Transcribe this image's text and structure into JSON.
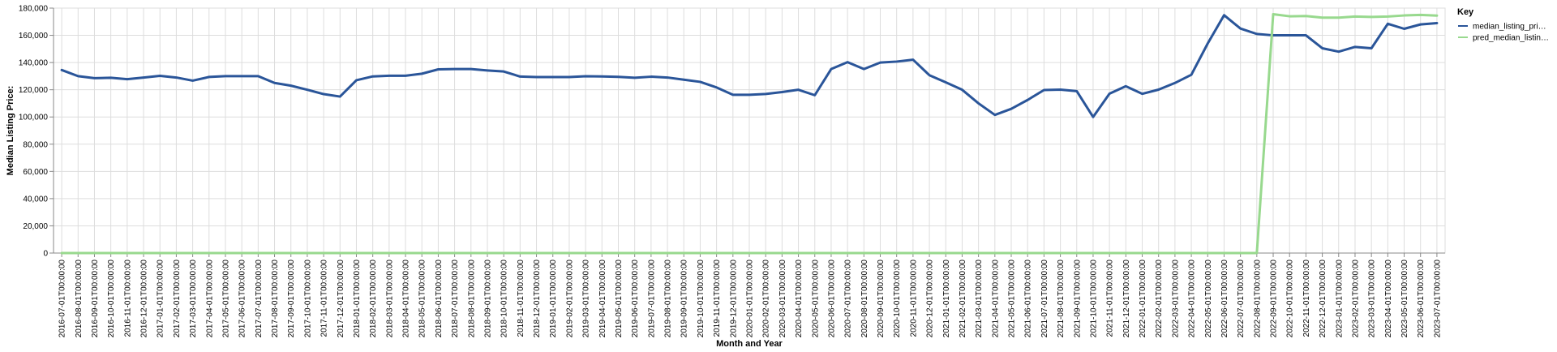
{
  "chart_data": {
    "type": "line",
    "title": "",
    "xlabel": "Month and Year",
    "ylabel": "Median Listing Price:",
    "ylim": [
      0,
      180000
    ],
    "yticks": [
      0,
      20000,
      40000,
      60000,
      80000,
      100000,
      120000,
      140000,
      160000,
      180000
    ],
    "ytick_labels": [
      "0",
      "20,000",
      "40,000",
      "60,000",
      "80,000",
      "100,000",
      "120,000",
      "140,000",
      "160,000",
      "180,000"
    ],
    "grid": true,
    "legend": {
      "title": "Key",
      "placement": "right",
      "entries": [
        "median_listing_pri…",
        "pred_median_listin…"
      ]
    },
    "x": [
      "2016-07-01T00:00:00",
      "2016-08-01T00:00:00",
      "2016-09-01T00:00:00",
      "2016-10-01T00:00:00",
      "2016-11-01T00:00:00",
      "2016-12-01T00:00:00",
      "2017-01-01T00:00:00",
      "2017-02-01T00:00:00",
      "2017-03-01T00:00:00",
      "2017-04-01T00:00:00",
      "2017-05-01T00:00:00",
      "2017-06-01T00:00:00",
      "2017-07-01T00:00:00",
      "2017-08-01T00:00:00",
      "2017-09-01T00:00:00",
      "2017-10-01T00:00:00",
      "2017-11-01T00:00:00",
      "2017-12-01T00:00:00",
      "2018-01-01T00:00:00",
      "2018-02-01T00:00:00",
      "2018-03-01T00:00:00",
      "2018-04-01T00:00:00",
      "2018-05-01T00:00:00",
      "2018-06-01T00:00:00",
      "2018-07-01T00:00:00",
      "2018-08-01T00:00:00",
      "2018-09-01T00:00:00",
      "2018-10-01T00:00:00",
      "2018-11-01T00:00:00",
      "2018-12-01T00:00:00",
      "2019-01-01T00:00:00",
      "2019-02-01T00:00:00",
      "2019-03-01T00:00:00",
      "2019-04-01T00:00:00",
      "2019-05-01T00:00:00",
      "2019-06-01T00:00:00",
      "2019-07-01T00:00:00",
      "2019-08-01T00:00:00",
      "2019-09-01T00:00:00",
      "2019-10-01T00:00:00",
      "2019-11-01T00:00:00",
      "2019-12-01T00:00:00",
      "2020-01-01T00:00:00",
      "2020-02-01T00:00:00",
      "2020-03-01T00:00:00",
      "2020-04-01T00:00:00",
      "2020-05-01T00:00:00",
      "2020-06-01T00:00:00",
      "2020-07-01T00:00:00",
      "2020-08-01T00:00:00",
      "2020-09-01T00:00:00",
      "2020-10-01T00:00:00",
      "2020-11-01T00:00:00",
      "2020-12-01T00:00:00",
      "2021-01-01T00:00:00",
      "2021-02-01T00:00:00",
      "2021-03-01T00:00:00",
      "2021-04-01T00:00:00",
      "2021-05-01T00:00:00",
      "2021-06-01T00:00:00",
      "2021-07-01T00:00:00",
      "2021-08-01T00:00:00",
      "2021-09-01T00:00:00",
      "2021-10-01T00:00:00",
      "2021-11-01T00:00:00",
      "2021-12-01T00:00:00",
      "2022-01-01T00:00:00",
      "2022-02-01T00:00:00",
      "2022-03-01T00:00:00",
      "2022-04-01T00:00:00",
      "2022-05-01T00:00:00",
      "2022-06-01T00:00:00",
      "2022-07-01T00:00:00",
      "2022-08-01T00:00:00",
      "2022-09-01T00:00:00",
      "2022-10-01T00:00:00",
      "2022-11-01T00:00:00",
      "2022-12-01T00:00:00",
      "2023-01-01T00:00:00",
      "2023-02-01T00:00:00",
      "2023-03-01T00:00:00",
      "2023-04-01T00:00:00",
      "2023-05-01T00:00:00",
      "2023-06-01T00:00:00",
      "2023-07-01T00:00:00"
    ],
    "series": [
      {
        "name": "median_listing_pri…",
        "color": "#2a5599",
        "values": [
          134500,
          130000,
          128500,
          128800,
          127800,
          129000,
          130200,
          129000,
          126700,
          129400,
          130000,
          130000,
          130000,
          125000,
          123000,
          120000,
          116800,
          115000,
          127000,
          129800,
          130300,
          130300,
          131800,
          135000,
          135200,
          135200,
          134200,
          133400,
          129700,
          129300,
          129300,
          129300,
          129900,
          129800,
          129500,
          128800,
          129600,
          129000,
          127400,
          125800,
          121700,
          116300,
          116300,
          116900,
          118300,
          120000,
          116000,
          135200,
          140300,
          135200,
          140000,
          140700,
          142100,
          130700,
          125500,
          120000,
          110000,
          101500,
          106000,
          112500,
          119800,
          120100,
          119000,
          100000,
          117100,
          122600,
          117000,
          120100,
          125000,
          131000,
          154000,
          174800,
          165000,
          161000,
          160000,
          160000,
          160000,
          150500,
          148000,
          151500,
          150500,
          168500,
          164800,
          168000,
          169000
        ]
      },
      {
        "name": "pred_median_listin…",
        "color": "#98d98e",
        "values": [
          0,
          0,
          0,
          0,
          0,
          0,
          0,
          0,
          0,
          0,
          0,
          0,
          0,
          0,
          0,
          0,
          0,
          0,
          0,
          0,
          0,
          0,
          0,
          0,
          0,
          0,
          0,
          0,
          0,
          0,
          0,
          0,
          0,
          0,
          0,
          0,
          0,
          0,
          0,
          0,
          0,
          0,
          0,
          0,
          0,
          0,
          0,
          0,
          0,
          0,
          0,
          0,
          0,
          0,
          0,
          0,
          0,
          0,
          0,
          0,
          0,
          0,
          0,
          0,
          0,
          0,
          0,
          0,
          0,
          0,
          0,
          0,
          0,
          0,
          175500,
          174000,
          174200,
          173000,
          173000,
          173800,
          173500,
          173800,
          174600,
          175000,
          174500
        ]
      }
    ]
  }
}
